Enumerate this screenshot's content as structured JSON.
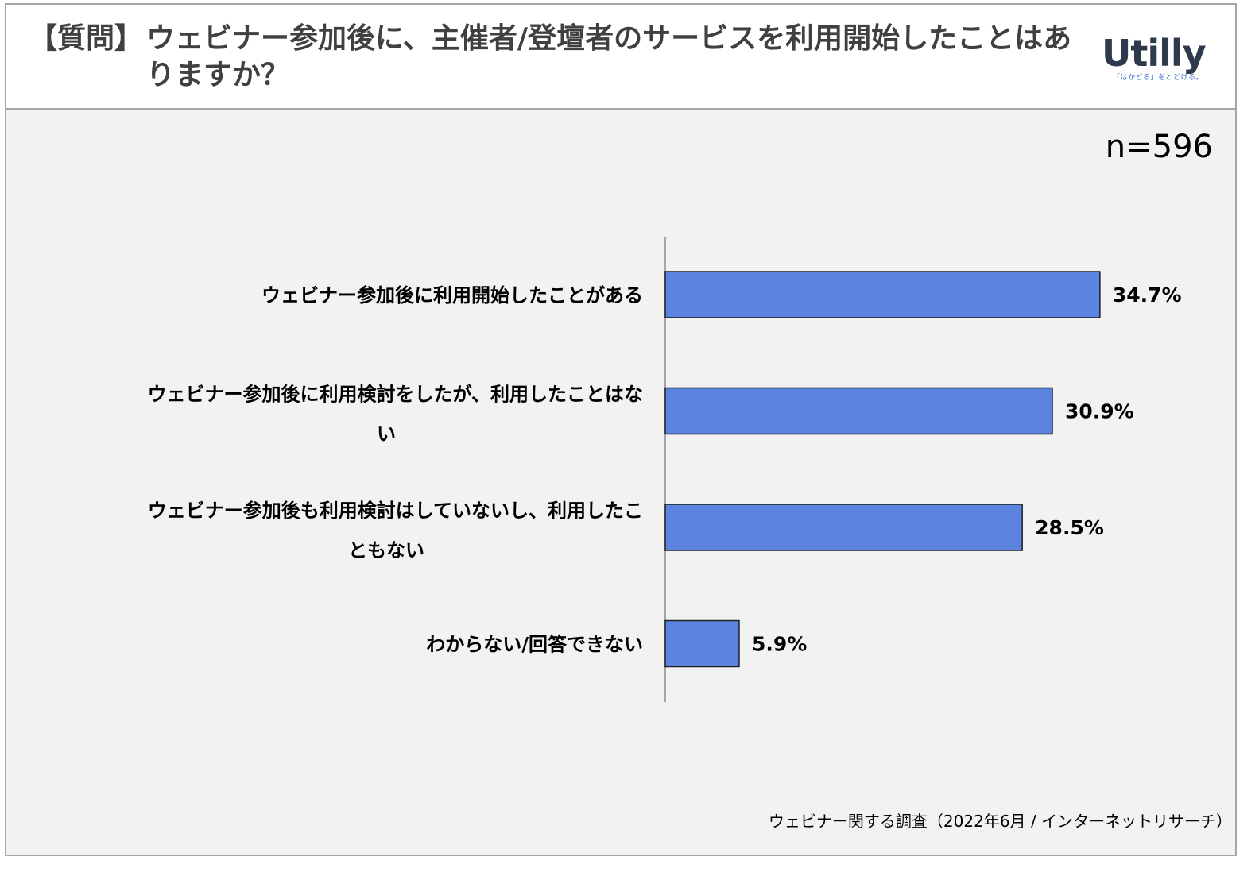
{
  "header": {
    "prefix": "【質問】",
    "question": "ウェビナー参加後に、主催者/登壇者のサービスを利用開始したことはありますか？"
  },
  "logo": {
    "word": "Utilly",
    "tagline": "「はかどる」をとどける。"
  },
  "sample_size": "n=596",
  "source": "ウェビナー関する調査（2022年6月 / インターネットリサーチ）",
  "colors": {
    "bar": "#5b84e0",
    "bar_border": "#1f1f1f",
    "axis": "#8c8c8c",
    "background": "#f2f2f2"
  },
  "chart_data": {
    "type": "bar",
    "orientation": "horizontal",
    "categories": [
      "ウェビナー参加後に利用開始したことがある",
      "ウェビナー参加後に利用検討をしたが、利用したことはない",
      "ウェビナー参加後も利用検討はしていないし、利用したこともない",
      "わからない/回答できない"
    ],
    "category_lines": [
      [
        "ウェビナー参加後に利用開始したことがある"
      ],
      [
        "ウェビナー参加後に利用検討をしたが、利用したことはな",
        "い"
      ],
      [
        "ウェビナー参加後も利用検討はしていないし、利用したこ",
        "ともない"
      ],
      [
        "わからない/回答できない"
      ]
    ],
    "values": [
      34.7,
      30.9,
      28.5,
      5.9
    ],
    "data_labels": [
      "34.7%",
      "30.9%",
      "28.5%",
      "5.9%"
    ],
    "xlim": [
      0,
      40
    ],
    "grid": false,
    "legend": "none"
  }
}
